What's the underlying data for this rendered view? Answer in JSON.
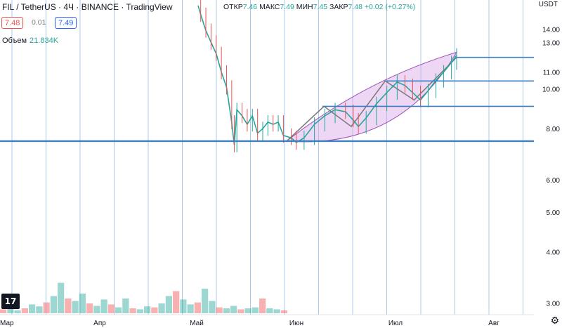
{
  "header": {
    "symbol_line": "FIL / TetherUS · 4Ч · BINANCE · TradingView",
    "ohlc": [
      {
        "label": "ОТКР",
        "value": "7.46"
      },
      {
        "label": "МАКС",
        "value": "7.49"
      },
      {
        "label": "МИН",
        "value": "7.45"
      },
      {
        "label": "ЗАКР",
        "value": "7.48"
      }
    ],
    "change": "+0.02 (+0.27%)",
    "sell_price": "7.48",
    "spread": "0.01",
    "buy_price": "7.49",
    "volume_label": "Объем",
    "volume_value": "21.834K",
    "currency": "USDT",
    "logo": "17"
  },
  "colors": {
    "up": "#26a69a",
    "down": "#ef5350",
    "line_blue": "#3d7fc1",
    "arc_fill": "#d9a6e6",
    "arc_stroke": "#9c4fb8",
    "grid": "#a9c9ec"
  },
  "icons": [
    "settings-gear-icon",
    "tradingview-logo-icon"
  ],
  "chart_data": {
    "type": "candlestick",
    "title": "FIL / TetherUS · 4Ч · BINANCE",
    "ylabel": "USDT",
    "y_scale": "log",
    "ylim": [
      2.9,
      16.5
    ],
    "y_ticks": [
      "14.00",
      "13.00",
      "11.00",
      "10.00",
      "8.00",
      "6.00",
      "5.00",
      "4.00",
      "3.00"
    ],
    "x_labels": [
      "Мар",
      "Апр",
      "Май",
      "Июн",
      "Июл",
      "Авг"
    ],
    "horizontal_levels": [
      {
        "label": "11.95",
        "value": 11.95
      },
      {
        "label": "10.46",
        "value": 10.46
      },
      {
        "label": "9.07",
        "value": 9.07
      }
    ],
    "current_price_labels": [
      "7.48",
      "7.46"
    ],
    "price_series": [
      {
        "t": 0.0,
        "p": 16.0
      },
      {
        "t": 0.01,
        "p": 15.2
      },
      {
        "t": 0.03,
        "p": 13.9
      },
      {
        "t": 0.05,
        "p": 13.0
      },
      {
        "t": 0.07,
        "p": 12.2
      },
      {
        "t": 0.09,
        "p": 11.0
      },
      {
        "t": 0.11,
        "p": 10.1
      },
      {
        "t": 0.13,
        "p": 8.3
      },
      {
        "t": 0.14,
        "p": 7.3
      },
      {
        "t": 0.15,
        "p": 8.9
      },
      {
        "t": 0.17,
        "p": 8.6
      },
      {
        "t": 0.19,
        "p": 8.2
      },
      {
        "t": 0.21,
        "p": 8.6
      },
      {
        "t": 0.23,
        "p": 7.8
      },
      {
        "t": 0.25,
        "p": 8.0
      },
      {
        "t": 0.27,
        "p": 8.3
      },
      {
        "t": 0.29,
        "p": 8.2
      },
      {
        "t": 0.31,
        "p": 8.3
      },
      {
        "t": 0.33,
        "p": 7.7
      },
      {
        "t": 0.36,
        "p": 7.6
      },
      {
        "t": 0.38,
        "p": 7.4
      },
      {
        "t": 0.41,
        "p": 7.6
      },
      {
        "t": 0.45,
        "p": 8.2
      },
      {
        "t": 0.49,
        "p": 8.6
      },
      {
        "t": 0.53,
        "p": 8.9
      },
      {
        "t": 0.57,
        "p": 8.8
      },
      {
        "t": 0.6,
        "p": 8.4
      },
      {
        "t": 0.62,
        "p": 8.1
      },
      {
        "t": 0.65,
        "p": 8.5
      },
      {
        "t": 0.69,
        "p": 9.2
      },
      {
        "t": 0.73,
        "p": 9.8
      },
      {
        "t": 0.77,
        "p": 10.4
      },
      {
        "t": 0.8,
        "p": 10.2
      },
      {
        "t": 0.83,
        "p": 9.8
      },
      {
        "t": 0.86,
        "p": 9.4
      },
      {
        "t": 0.89,
        "p": 9.9
      },
      {
        "t": 0.92,
        "p": 10.5
      },
      {
        "t": 0.95,
        "p": 11.0
      },
      {
        "t": 0.98,
        "p": 11.6
      },
      {
        "t": 1.0,
        "p": 12.1
      }
    ],
    "pattern_path": [
      {
        "t": 0.0,
        "p": 7.46
      },
      {
        "t": 0.22,
        "p": 9.07
      },
      {
        "t": 0.38,
        "p": 8.1
      },
      {
        "t": 0.58,
        "p": 10.46
      },
      {
        "t": 0.75,
        "p": 9.4
      },
      {
        "t": 1.0,
        "p": 11.95
      }
    ],
    "volume": [
      0.08,
      0.12,
      0.06,
      0.1,
      0.18,
      0.14,
      0.22,
      0.35,
      0.62,
      0.3,
      0.25,
      0.4,
      0.2,
      0.15,
      0.28,
      0.18,
      0.12,
      0.3,
      0.1,
      0.08,
      0.14,
      0.12,
      0.2,
      0.35,
      0.45,
      0.28,
      0.18,
      0.22,
      0.5,
      0.25,
      0.12,
      0.1,
      0.15,
      0.08,
      0.1,
      0.12,
      0.3,
      0.1,
      0.08,
      0.06
    ]
  }
}
